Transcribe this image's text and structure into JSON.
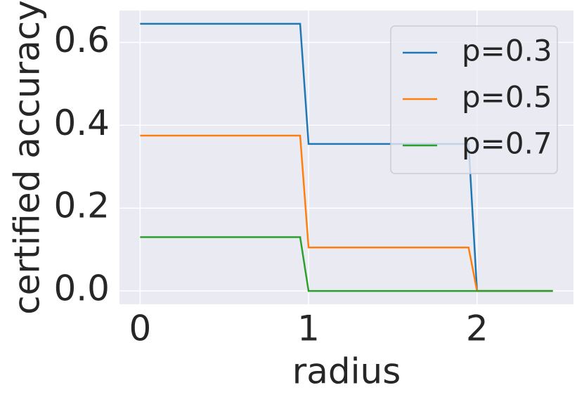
{
  "chart_data": {
    "type": "line",
    "x_label": "radius",
    "y_label": "certified accuracy",
    "x": [
      0,
      0.95,
      1.0,
      1.95,
      2.0,
      2.45
    ],
    "series": [
      {
        "name": "p=0.3",
        "color": "#1f77b4",
        "values": [
          0.645,
          0.645,
          0.355,
          0.355,
          0,
          0
        ]
      },
      {
        "name": "p=0.5",
        "color": "#ff7f0e",
        "values": [
          0.375,
          0.375,
          0.105,
          0.105,
          0,
          0
        ]
      },
      {
        "name": "p=0.7",
        "color": "#2ca02c",
        "values": [
          0.13,
          0.13,
          0,
          0,
          0,
          0
        ]
      }
    ],
    "xlim": [
      -0.1225,
      2.5725
    ],
    "ylim": [
      -0.032,
      0.677
    ],
    "xticks": [
      0,
      1,
      2
    ],
    "yticks": [
      {
        "value": 0,
        "label": "0.0"
      },
      0.2,
      0.4,
      0.6
    ],
    "grid": true,
    "legend": "upper right"
  }
}
